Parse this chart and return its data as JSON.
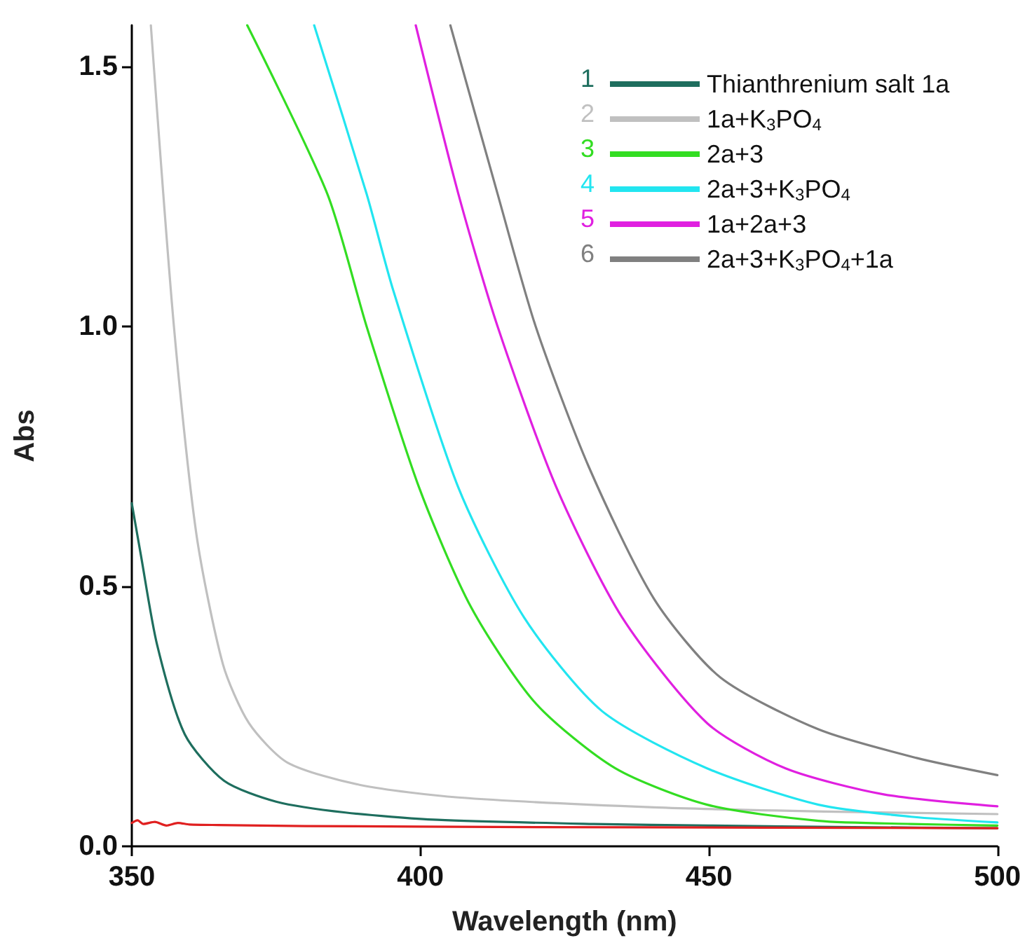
{
  "chart_data": {
    "type": "line",
    "xlabel": "Wavelength (nm)",
    "ylabel": "Abs",
    "xlim": [
      350,
      500
    ],
    "xticks": [
      350,
      400,
      450,
      500
    ],
    "ylim": [
      0,
      1.58
    ],
    "yticks": [
      {
        "value": 0,
        "label": "0.0"
      },
      0.5,
      {
        "value": 1,
        "label": "1.0"
      },
      1.5
    ],
    "grid": false,
    "legend": "top right",
    "line_style": "solid",
    "marker": "none",
    "annotations": [
      "1",
      "2",
      "3",
      "4",
      "5",
      "6"
    ],
    "series": [
      {
        "name": "Thianthrenium salt 1a",
        "color": "#1e6e5e",
        "x": [
          350,
          351.5,
          354.4,
          359.2,
          366,
          375,
          387,
          403,
          430,
          450,
          475,
          500
        ],
        "values": [
          0.66,
          0.565,
          0.387,
          0.215,
          0.126,
          0.086,
          0.065,
          0.051,
          0.043,
          0.04,
          0.037,
          0.035
        ]
      },
      {
        "name": "1a+K$_{3}$PO$_{4}$",
        "color": "#c0c0c0",
        "x": [
          353.3,
          357.3,
          361.2,
          365.8,
          370.3,
          377,
          389.6,
          406.6,
          440.5,
          470,
          500
        ],
        "values": [
          1.58,
          1.0,
          0.6,
          0.35,
          0.237,
          0.161,
          0.118,
          0.094,
          0.075,
          0.067,
          0.062
        ]
      },
      {
        "name": "2a+3",
        "color": "#33dd22",
        "x": [
          370,
          383.9,
          390.7,
          399.8,
          408.8,
          420,
          433.8,
          449.7,
          469,
          485,
          500
        ],
        "values": [
          1.58,
          1.255,
          1.0,
          0.69,
          0.46,
          0.275,
          0.15,
          0.08,
          0.049,
          0.043,
          0.04
        ]
      },
      {
        "name": "2a+3+K$_{3}$PO$_{4}$",
        "color": "#22e5f0",
        "x": [
          381.6,
          390.7,
          395.3,
          406.6,
          418,
          431.5,
          449.7,
          469,
          485,
          500
        ],
        "values": [
          1.58,
          1.255,
          1.07,
          0.69,
          0.44,
          0.26,
          0.15,
          0.08,
          0.057,
          0.046
        ]
      },
      {
        "name": "1a+2a+3",
        "color": "#e020e0",
        "x": [
          399.2,
          406.6,
          413.4,
          423.6,
          435,
          449.7,
          463.3,
          480.3,
          500
        ],
        "values": [
          1.58,
          1.255,
          1.0,
          0.69,
          0.44,
          0.237,
          0.15,
          0.1,
          0.077
        ]
      },
      {
        "name": "2a+3+K$_{3}$PO$_{4}$+1a",
        "color": "#808080",
        "x": [
          405.2,
          413.4,
          420,
          429.2,
          440.5,
          452,
          469,
          486,
          500
        ],
        "values": [
          1.58,
          1.255,
          1.0,
          0.73,
          0.476,
          0.325,
          0.225,
          0.17,
          0.137
        ]
      },
      {
        "color": "#e02020",
        "x": [
          350,
          351,
          352,
          354,
          356,
          358,
          360,
          365,
          380,
          420,
          460,
          500
        ],
        "values": [
          0.045,
          0.05,
          0.043,
          0.047,
          0.04,
          0.045,
          0.042,
          0.041,
          0.039,
          0.037,
          0.036,
          0.035
        ]
      }
    ]
  }
}
